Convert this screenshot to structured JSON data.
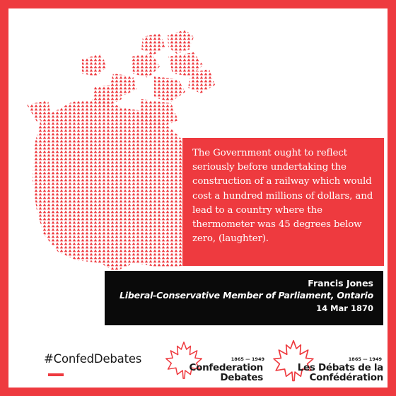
{
  "quote": {
    "text": "The Government ought to reflect seriously before undertaking the construction of a railway which would cost a hundred millions of dollars, and lead to a country where the thermometer was 45 degrees below zero, (laughter)."
  },
  "attribution": {
    "name": "Francis Jones",
    "role": "Liberal-Conservative Member of Parliament, Ontario",
    "date": "14 Mar 1870"
  },
  "footer": {
    "hashtag": "#ConfedDebates",
    "logo_en": {
      "years": "1865 — 1949",
      "line1": "Confederation",
      "line2": "Debates"
    },
    "logo_fr": {
      "years": "1865 — 1949",
      "line1": "Les Débats de la",
      "line2": "Confédération"
    }
  },
  "colors": {
    "accent": "#ee3a3f",
    "map_fill": "#ee3a3f",
    "attribution_bg": "#0a0a0a",
    "text_dark": "#1a1a1a"
  },
  "icons": [
    "canada-map-illustration",
    "maple-leaf-outline-icon"
  ]
}
